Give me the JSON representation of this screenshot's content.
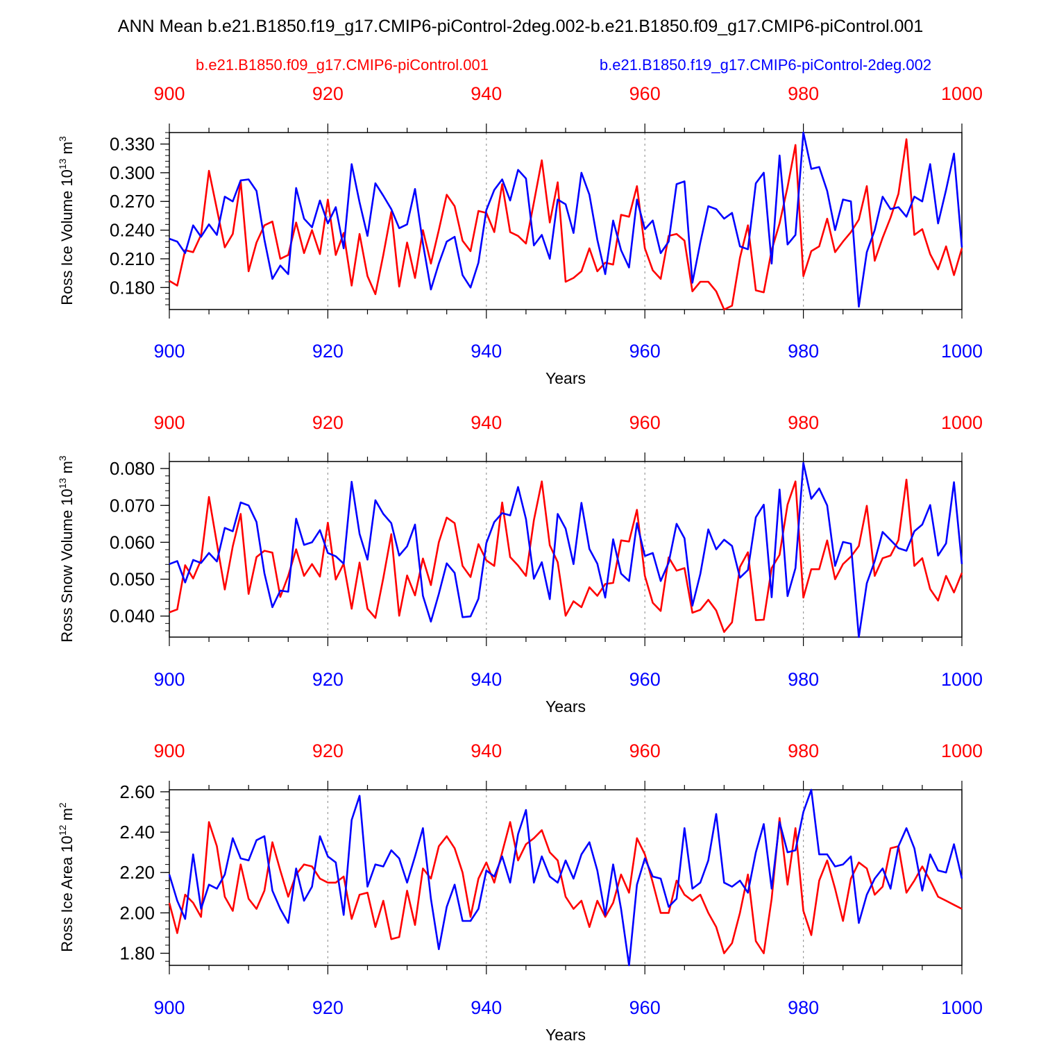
{
  "title": "ANN Mean b.e21.B1850.f19_g17.CMIP6-piControl-2deg.002-b.e21.B1850.f09_g17.CMIP6-piControl.001",
  "legend": {
    "case1": "b.e21.B1850.f09_g17.CMIP6-piControl.001",
    "case2": "b.e21.B1850.f19_g17.CMIP6-piControl-2deg.002"
  },
  "colors": {
    "case1": "#ff0000",
    "case2": "#0000ff",
    "axis": "#000000",
    "grid": "#999999"
  },
  "chart_data": [
    {
      "type": "line",
      "ylabel_main": "Ross Ice Volume 10",
      "ylabel_exp": "13",
      "ylabel_unit": " m",
      "ylabel_unit_exp": "3",
      "xlabel": "Years",
      "xlim": [
        900,
        1000
      ],
      "ylim": [
        0.157,
        0.342
      ],
      "yticks": [
        0.18,
        0.21,
        0.24,
        0.27,
        0.3,
        0.33
      ],
      "yticklabels": [
        "0.180",
        "0.210",
        "0.240",
        "0.270",
        "0.300",
        "0.330"
      ],
      "xticks": [
        900,
        920,
        940,
        960,
        980,
        1000
      ],
      "xticklabels": [
        "900",
        "920",
        "940",
        "960",
        "980",
        "1000"
      ],
      "series": [
        {
          "name": "b.e21.B1850.f09_g17.CMIP6-piControl.001",
          "color": "#ff0000",
          "x_start": 900,
          "values": [
            0.187,
            0.182,
            0.219,
            0.217,
            0.235,
            0.302,
            0.262,
            0.222,
            0.236,
            0.291,
            0.197,
            0.227,
            0.245,
            0.249,
            0.21,
            0.214,
            0.248,
            0.216,
            0.24,
            0.215,
            0.272,
            0.214,
            0.237,
            0.182,
            0.236,
            0.192,
            0.173,
            0.214,
            0.259,
            0.181,
            0.227,
            0.19,
            0.24,
            0.205,
            0.24,
            0.277,
            0.265,
            0.229,
            0.218,
            0.26,
            0.258,
            0.238,
            0.288,
            0.238,
            0.234,
            0.226,
            0.269,
            0.313,
            0.248,
            0.29,
            0.186,
            0.19,
            0.197,
            0.221,
            0.197,
            0.206,
            0.204,
            0.256,
            0.254,
            0.286,
            0.221,
            0.198,
            0.189,
            0.234,
            0.236,
            0.229,
            0.176,
            0.186,
            0.186,
            0.176,
            0.157,
            0.161,
            0.211,
            0.245,
            0.177,
            0.175,
            0.219,
            0.247,
            0.285,
            0.329,
            0.192,
            0.218,
            0.223,
            0.252,
            0.217,
            0.228,
            0.238,
            0.251,
            0.286,
            0.208,
            0.232,
            0.253,
            0.278,
            0.335,
            0.235,
            0.241,
            0.215,
            0.199,
            0.223,
            0.193,
            0.221
          ]
        },
        {
          "name": "b.e21.B1850.f19_g17.CMIP6-piControl-2deg.002",
          "color": "#0000ff",
          "x_start": 900,
          "values": [
            0.231,
            0.228,
            0.216,
            0.245,
            0.233,
            0.246,
            0.235,
            0.275,
            0.27,
            0.292,
            0.293,
            0.281,
            0.23,
            0.189,
            0.203,
            0.194,
            0.284,
            0.252,
            0.243,
            0.271,
            0.247,
            0.264,
            0.221,
            0.309,
            0.269,
            0.234,
            0.289,
            0.276,
            0.262,
            0.242,
            0.246,
            0.283,
            0.226,
            0.178,
            0.205,
            0.228,
            0.233,
            0.193,
            0.18,
            0.206,
            0.261,
            0.282,
            0.293,
            0.271,
            0.303,
            0.294,
            0.224,
            0.235,
            0.21,
            0.272,
            0.267,
            0.237,
            0.3,
            0.277,
            0.23,
            0.194,
            0.25,
            0.219,
            0.201,
            0.272,
            0.241,
            0.25,
            0.216,
            0.228,
            0.288,
            0.291,
            0.185,
            0.227,
            0.265,
            0.262,
            0.252,
            0.258,
            0.223,
            0.22,
            0.289,
            0.3,
            0.205,
            0.318,
            0.225,
            0.235,
            0.342,
            0.304,
            0.306,
            0.281,
            0.24,
            0.272,
            0.27,
            0.16,
            0.217,
            0.24,
            0.275,
            0.262,
            0.264,
            0.254,
            0.275,
            0.27,
            0.309,
            0.247,
            0.282,
            0.32,
            0.222
          ]
        }
      ]
    },
    {
      "type": "line",
      "ylabel_main": "Ross Snow Volume 10",
      "ylabel_exp": "13",
      "ylabel_unit": " m",
      "ylabel_unit_exp": "3",
      "xlabel": "Years",
      "xlim": [
        900,
        1000
      ],
      "ylim": [
        0.0343,
        0.0819
      ],
      "yticks": [
        0.04,
        0.05,
        0.06,
        0.07,
        0.08
      ],
      "yticklabels": [
        "0.040",
        "0.050",
        "0.060",
        "0.070",
        "0.080"
      ],
      "xticks": [
        900,
        920,
        940,
        960,
        980,
        1000
      ],
      "xticklabels": [
        "900",
        "920",
        "940",
        "960",
        "980",
        "1000"
      ],
      "series": [
        {
          "name": "b.e21.B1850.f09_g17.CMIP6-piControl.001",
          "color": "#ff0000",
          "x_start": 900,
          "values": [
            0.041,
            0.0418,
            0.0538,
            0.0502,
            0.0552,
            0.0723,
            0.0597,
            0.0472,
            0.0589,
            0.0677,
            0.046,
            0.056,
            0.0577,
            0.0572,
            0.0452,
            0.0509,
            0.0581,
            0.0509,
            0.0541,
            0.0507,
            0.0653,
            0.0499,
            0.0542,
            0.042,
            0.0545,
            0.042,
            0.0395,
            0.0503,
            0.0622,
            0.0401,
            0.051,
            0.0456,
            0.0556,
            0.0484,
            0.06,
            0.0667,
            0.0652,
            0.0536,
            0.0506,
            0.0595,
            0.0551,
            0.0536,
            0.0708,
            0.056,
            0.0537,
            0.0509,
            0.066,
            0.0765,
            0.0592,
            0.0546,
            0.0401,
            0.044,
            0.0424,
            0.0478,
            0.0455,
            0.0487,
            0.049,
            0.0605,
            0.0602,
            0.0688,
            0.0509,
            0.0436,
            0.0414,
            0.0559,
            0.0523,
            0.053,
            0.0409,
            0.0417,
            0.0444,
            0.0415,
            0.0357,
            0.0383,
            0.0533,
            0.0573,
            0.0389,
            0.039,
            0.053,
            0.0566,
            0.0702,
            0.0765,
            0.045,
            0.0527,
            0.0527,
            0.0605,
            0.05,
            0.0541,
            0.0561,
            0.059,
            0.0699,
            0.0509,
            0.0557,
            0.0564,
            0.0606,
            0.077,
            0.0536,
            0.0557,
            0.0473,
            0.0442,
            0.0509,
            0.0464,
            0.0517
          ]
        },
        {
          "name": "b.e21.B1850.f19_g17.CMIP6-piControl-2deg.002",
          "color": "#0000ff",
          "x_start": 900,
          "values": [
            0.0541,
            0.0549,
            0.0491,
            0.0552,
            0.0544,
            0.0571,
            0.0548,
            0.0639,
            0.063,
            0.0708,
            0.07,
            0.0655,
            0.0516,
            0.0424,
            0.0469,
            0.0466,
            0.0664,
            0.0593,
            0.06,
            0.0633,
            0.0571,
            0.0562,
            0.0542,
            0.0764,
            0.0623,
            0.0553,
            0.0714,
            0.0677,
            0.0652,
            0.0564,
            0.0589,
            0.0648,
            0.0455,
            0.0385,
            0.046,
            0.0543,
            0.0517,
            0.0397,
            0.0399,
            0.0447,
            0.0598,
            0.0655,
            0.0679,
            0.0673,
            0.075,
            0.0663,
            0.0501,
            0.0546,
            0.0446,
            0.0677,
            0.0637,
            0.0541,
            0.0707,
            0.0582,
            0.0542,
            0.045,
            0.0608,
            0.0515,
            0.0495,
            0.0652,
            0.0563,
            0.0571,
            0.0495,
            0.0545,
            0.065,
            0.0611,
            0.0428,
            0.0514,
            0.0635,
            0.0581,
            0.0607,
            0.059,
            0.0504,
            0.0525,
            0.0668,
            0.0702,
            0.0451,
            0.0743,
            0.0454,
            0.053,
            0.0815,
            0.0718,
            0.0746,
            0.07,
            0.0536,
            0.0601,
            0.0596,
            0.0343,
            0.0489,
            0.0549,
            0.0628,
            0.0606,
            0.0584,
            0.0577,
            0.063,
            0.0648,
            0.0701,
            0.0564,
            0.0597,
            0.0763,
            0.0541
          ]
        }
      ]
    },
    {
      "type": "line",
      "ylabel_main": "Ross Ice Area 10",
      "ylabel_exp": "12",
      "ylabel_unit": " m",
      "ylabel_unit_exp": "2",
      "xlabel": "Years",
      "xlim": [
        900,
        1000
      ],
      "ylim": [
        1.74,
        2.61
      ],
      "yticks": [
        1.8,
        2.0,
        2.2,
        2.4,
        2.6
      ],
      "yticklabels": [
        "1.80",
        "2.00",
        "2.20",
        "2.40",
        "2.60"
      ],
      "xticks": [
        900,
        920,
        940,
        960,
        980,
        1000
      ],
      "xticklabels": [
        "900",
        "920",
        "940",
        "960",
        "980",
        "1000"
      ],
      "series": [
        {
          "name": "b.e21.B1850.f09_g17.CMIP6-piControl.001",
          "color": "#ff0000",
          "x_start": 900,
          "values": [
            2.05,
            1.9,
            2.09,
            2.05,
            1.98,
            2.45,
            2.33,
            2.08,
            2.01,
            2.24,
            2.07,
            2.02,
            2.11,
            2.35,
            2.21,
            2.08,
            2.19,
            2.24,
            2.23,
            2.17,
            2.15,
            2.15,
            2.18,
            1.97,
            2.09,
            2.1,
            1.93,
            2.06,
            1.87,
            1.88,
            2.11,
            1.94,
            2.22,
            2.17,
            2.33,
            2.38,
            2.32,
            2.2,
            1.98,
            2.17,
            2.25,
            2.15,
            2.3,
            2.45,
            2.26,
            2.34,
            2.37,
            2.41,
            2.3,
            2.26,
            2.08,
            2.02,
            2.06,
            1.93,
            2.06,
            1.98,
            2.05,
            2.19,
            2.1,
            2.37,
            2.29,
            2.15,
            2.0,
            2.0,
            2.16,
            2.09,
            2.06,
            2.09,
            2.0,
            1.93,
            1.8,
            1.85,
            2.0,
            2.19,
            1.86,
            1.8,
            2.07,
            2.47,
            2.14,
            2.42,
            2.01,
            1.89,
            2.16,
            2.26,
            2.12,
            1.96,
            2.17,
            2.25,
            2.22,
            2.09,
            2.13,
            2.32,
            2.33,
            2.1,
            2.16,
            2.23,
            2.16,
            2.08,
            2.06,
            2.04,
            2.02
          ]
        },
        {
          "name": "b.e21.B1850.f19_g17.CMIP6-piControl-2deg.002",
          "color": "#0000ff",
          "x_start": 900,
          "values": [
            2.19,
            2.06,
            1.97,
            2.29,
            2.02,
            2.14,
            2.12,
            2.19,
            2.37,
            2.27,
            2.26,
            2.36,
            2.38,
            2.11,
            2.02,
            1.95,
            2.22,
            2.06,
            2.13,
            2.38,
            2.28,
            2.25,
            1.99,
            2.46,
            2.58,
            2.13,
            2.24,
            2.23,
            2.31,
            2.27,
            2.15,
            2.28,
            2.42,
            2.07,
            1.82,
            2.03,
            2.14,
            1.96,
            1.96,
            2.02,
            2.21,
            2.18,
            2.28,
            2.15,
            2.39,
            2.51,
            2.15,
            2.28,
            2.18,
            2.15,
            2.26,
            2.17,
            2.29,
            2.35,
            2.21,
            1.99,
            2.24,
            2.02,
            1.74,
            2.14,
            2.27,
            2.18,
            2.17,
            2.03,
            2.07,
            2.42,
            2.12,
            2.15,
            2.26,
            2.49,
            2.15,
            2.13,
            2.16,
            2.1,
            2.3,
            2.44,
            2.12,
            2.45,
            2.3,
            2.31,
            2.5,
            2.61,
            2.29,
            2.29,
            2.23,
            2.24,
            2.28,
            1.95,
            2.09,
            2.17,
            2.22,
            2.12,
            2.33,
            2.42,
            2.32,
            2.11,
            2.29,
            2.21,
            2.2,
            2.34,
            2.17
          ]
        }
      ]
    }
  ]
}
